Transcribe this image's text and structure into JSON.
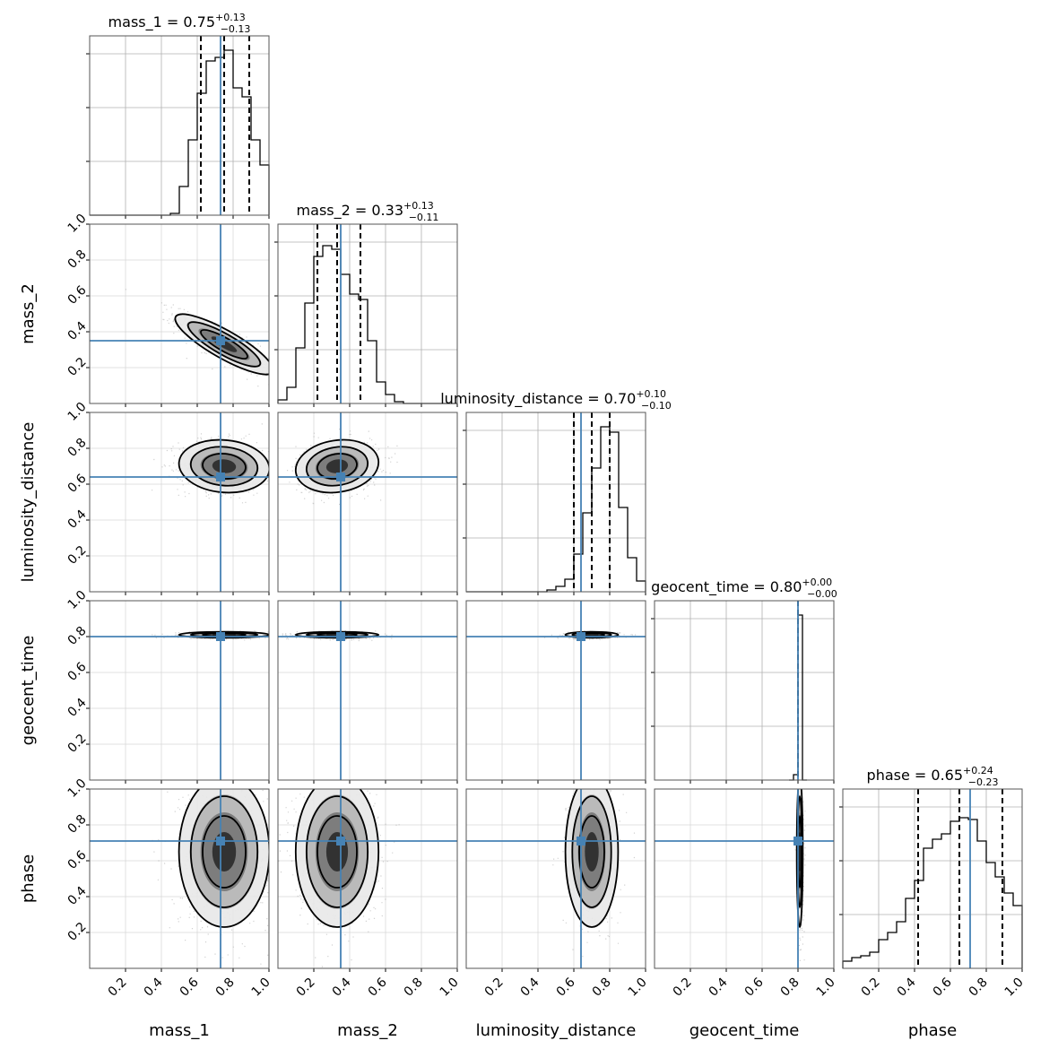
{
  "chart_data": {
    "type": "corner",
    "parameters": [
      "mass_1",
      "mass_2",
      "luminosity_distance",
      "geocent_time",
      "phase"
    ],
    "axis_range": [
      0,
      1
    ],
    "tick_labels": [
      "0.2",
      "0.4",
      "0.6",
      "0.8",
      "1.0"
    ],
    "grid": true,
    "truth_color": "#4682b4",
    "truths": [
      0.73,
      0.35,
      0.64,
      0.8,
      0.71
    ],
    "titles": [
      {
        "prefix": "mass_1 = 0.75",
        "up": "+0.13",
        "down": "−0.13"
      },
      {
        "prefix": "mass_2 = 0.33",
        "up": "+0.13",
        "down": "−0.11"
      },
      {
        "prefix": "luminosity_distance = 0.70",
        "up": "+0.10",
        "down": "−0.10"
      },
      {
        "prefix": "geocent_time = 0.80",
        "up": "+0.00",
        "down": "−0.00"
      },
      {
        "prefix": "phase = 0.65",
        "up": "+0.24",
        "down": "−0.23"
      }
    ],
    "quantiles": [
      [
        0.62,
        0.75,
        0.89
      ],
      [
        0.22,
        0.33,
        0.46
      ],
      [
        0.6,
        0.7,
        0.8
      ],
      [
        0.8,
        0.8,
        0.8
      ],
      [
        0.42,
        0.65,
        0.89
      ]
    ],
    "histograms": [
      {
        "edges_start": 0,
        "bin_width": 0.05,
        "counts": [
          0,
          0,
          0,
          0,
          0,
          0,
          0,
          0,
          0,
          0.01,
          0.16,
          0.42,
          0.68,
          0.86,
          0.88,
          0.92,
          0.71,
          0.66,
          0.42,
          0.28
        ]
      },
      {
        "edges_start": 0,
        "bin_width": 0.05,
        "counts": [
          0.02,
          0.09,
          0.31,
          0.56,
          0.82,
          0.88,
          0.86,
          0.72,
          0.61,
          0.58,
          0.35,
          0.12,
          0.05,
          0.01,
          0,
          0,
          0,
          0,
          0,
          0
        ]
      },
      {
        "edges_start": 0,
        "bin_width": 0.05,
        "counts": [
          0,
          0,
          0,
          0,
          0,
          0,
          0,
          0,
          0,
          0.01,
          0.03,
          0.07,
          0.21,
          0.44,
          0.69,
          0.92,
          0.89,
          0.47,
          0.19,
          0.06
        ]
      },
      {
        "edges_start": 0.75,
        "bin_width": 0.025,
        "counts": [
          0,
          0.03,
          0.92,
          0
        ]
      },
      {
        "edges_start": 0,
        "bin_width": 0.05,
        "counts": [
          0.04,
          0.06,
          0.07,
          0.09,
          0.16,
          0.2,
          0.26,
          0.39,
          0.49,
          0.67,
          0.72,
          0.75,
          0.82,
          0.84,
          0.83,
          0.71,
          0.59,
          0.51,
          0.42,
          0.35
        ]
      }
    ],
    "pairs": [
      {
        "x": 0,
        "y": 1,
        "mean": [
          0.75,
          0.33
        ],
        "sd": [
          0.13,
          0.08
        ],
        "rho": -0.85
      },
      {
        "x": 0,
        "y": 2,
        "mean": [
          0.75,
          0.7
        ],
        "sd": [
          0.12,
          0.07
        ],
        "rho": -0.1
      },
      {
        "x": 1,
        "y": 2,
        "mean": [
          0.33,
          0.7
        ],
        "sd": [
          0.11,
          0.07
        ],
        "rho": 0.15
      },
      {
        "x": 0,
        "y": 3,
        "mean": [
          0.75,
          0.81
        ],
        "sd": [
          0.12,
          0.008
        ],
        "rho": 0
      },
      {
        "x": 1,
        "y": 3,
        "mean": [
          0.33,
          0.81
        ],
        "sd": [
          0.11,
          0.008
        ],
        "rho": 0
      },
      {
        "x": 2,
        "y": 3,
        "mean": [
          0.7,
          0.81
        ],
        "sd": [
          0.07,
          0.008
        ],
        "rho": 0
      },
      {
        "x": 0,
        "y": 4,
        "mean": [
          0.75,
          0.65
        ],
        "sd": [
          0.12,
          0.2
        ],
        "rho": 0
      },
      {
        "x": 1,
        "y": 4,
        "mean": [
          0.33,
          0.65
        ],
        "sd": [
          0.11,
          0.2
        ],
        "rho": 0
      },
      {
        "x": 2,
        "y": 4,
        "mean": [
          0.7,
          0.65
        ],
        "sd": [
          0.07,
          0.2
        ],
        "rho": 0
      },
      {
        "x": 3,
        "y": 4,
        "mean": [
          0.81,
          0.65
        ],
        "sd": [
          0.008,
          0.2
        ],
        "rho": 0
      }
    ],
    "contour_levels": [
      0.12,
      0.34,
      0.61,
      0.86
    ]
  }
}
